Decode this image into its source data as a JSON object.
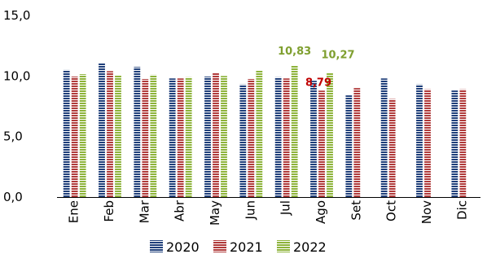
{
  "chart_data": {
    "type": "bar",
    "categories": [
      "Ene",
      "Feb",
      "Mar",
      "Abr",
      "May",
      "Jun",
      "Jul",
      "Ago",
      "Set",
      "Oct",
      "Nov",
      "Dic"
    ],
    "series": [
      {
        "name": "2020",
        "color": "#1F3F7A",
        "values": [
          10.5,
          11.1,
          10.75,
          9.8,
          9.95,
          9.3,
          9.9,
          9.6,
          8.4,
          9.8,
          9.3,
          8.8
        ]
      },
      {
        "name": "2021",
        "color": "#B03A3A",
        "values": [
          9.95,
          10.4,
          9.75,
          9.8,
          10.25,
          9.75,
          9.8,
          8.79,
          9.0,
          8.1,
          8.9,
          8.9
        ]
      },
      {
        "name": "2022",
        "color": "#8DB33A",
        "values": [
          10.15,
          10.05,
          10.1,
          9.9,
          10.0,
          10.45,
          10.83,
          10.27,
          null,
          null,
          null,
          null
        ]
      }
    ],
    "data_labels": [
      {
        "series": 2,
        "index": 6,
        "text": "10,83",
        "color": "#7F9F2F"
      },
      {
        "series": 2,
        "index": 7,
        "text": "10,27",
        "color": "#7F9F2F"
      },
      {
        "series": 1,
        "index": 7,
        "text": "8,79",
        "color": "#C00000"
      }
    ],
    "y_ticks": [
      "0,0",
      "5,0",
      "10,0",
      "15,0"
    ],
    "ylim": [
      0,
      15
    ],
    "grid": false,
    "legend_position": "bottom"
  }
}
